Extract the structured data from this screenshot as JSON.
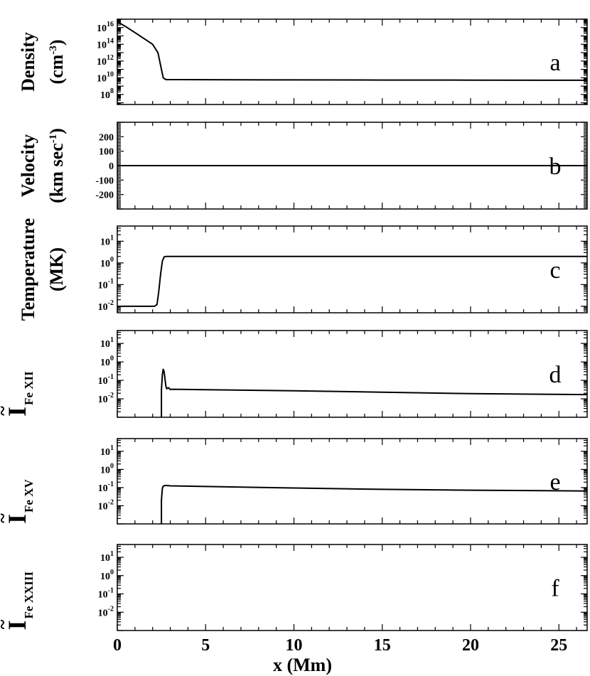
{
  "chart_data": {
    "type": "line",
    "xlabel": "x (Mm)",
    "xlim": [
      0,
      26.6
    ],
    "x_ticks": [
      0,
      5,
      10,
      15,
      20,
      25
    ],
    "panels": [
      {
        "id": "a",
        "letter": "a",
        "ylabel_line1": "Density",
        "ylabel_line2": "(cm",
        "ylabel_line2_sup": "-3",
        "ylabel_line2_end": ")",
        "scale": "log",
        "ylim_exp": [
          6.8,
          17.0
        ],
        "ticks": [
          {
            "value": 1e+16,
            "base": "10",
            "exp": "16"
          },
          {
            "value": 100000000000000.0,
            "base": "10",
            "exp": "14"
          },
          {
            "value": 1000000000000.0,
            "base": "10",
            "exp": "12"
          },
          {
            "value": 10000000000.0,
            "base": "10",
            "exp": "10"
          },
          {
            "value": 100000000.0,
            "base": "10",
            "exp": "8"
          }
        ],
        "series": [
          {
            "x": [
              0,
              0.5,
              1.0,
              1.5,
              2.0,
              2.3,
              2.5,
              2.6,
              2.75,
              3.0,
              5,
              10,
              15,
              20,
              26.6
            ],
            "y": [
              5e+16,
              1.2e+16,
              2500000000000000.0,
              500000000000000.0,
              100000000000000.0,
              10000000000000.0,
              100000000000.0,
              10000000000.0,
              6000000000.0,
              6000000000.0,
              5800000000.0,
              5500000000.0,
              5300000000.0,
              5200000000.0,
              5000000000.0
            ]
          }
        ]
      },
      {
        "id": "b",
        "letter": "b",
        "ylabel_line1": "Velocity",
        "ylabel_line2": "(km sec",
        "ylabel_line2_sup": "-1",
        "ylabel_line2_end": ")",
        "scale": "linear",
        "ylim": [
          -300,
          300
        ],
        "ticks": [
          {
            "value": 200,
            "label": "200"
          },
          {
            "value": 100,
            "label": "100"
          },
          {
            "value": 0,
            "label": "0"
          },
          {
            "value": -100,
            "label": "-100"
          },
          {
            "value": -200,
            "label": "-200"
          }
        ],
        "series": [
          {
            "x": [
              0,
              26.6
            ],
            "y": [
              0,
              0
            ]
          }
        ]
      },
      {
        "id": "c",
        "letter": "c",
        "ylabel_line1": "Temperature",
        "ylabel_line2": "(MK)",
        "scale": "log",
        "ylim_exp": [
          -2.3,
          1.7
        ],
        "ticks": [
          {
            "value": 10,
            "base": "10",
            "exp": "1"
          },
          {
            "value": 1,
            "base": "10",
            "exp": "0"
          },
          {
            "value": 0.1,
            "base": "10",
            "exp": "-1"
          },
          {
            "value": 0.01,
            "base": "10",
            "exp": "-2"
          }
        ],
        "series": [
          {
            "x": [
              0,
              2.1,
              2.25,
              2.35,
              2.45,
              2.55,
              2.65,
              2.75,
              26.6
            ],
            "y": [
              0.01,
              0.01,
              0.012,
              0.05,
              0.3,
              1.2,
              1.9,
              2.0,
              2.0
            ]
          }
        ]
      },
      {
        "id": "d",
        "letter": "d",
        "ylabel_big": "I",
        "ylabel_tilde": "~",
        "ylabel_sub": "Fe XII",
        "scale": "log",
        "ylim_exp": [
          -3.0,
          1.7
        ],
        "ticks": [
          {
            "value": 10,
            "base": "10",
            "exp": "1"
          },
          {
            "value": 1,
            "base": "10",
            "exp": "0"
          },
          {
            "value": 0.1,
            "base": "10",
            "exp": "-1"
          },
          {
            "value": 0.01,
            "base": "10",
            "exp": "-2"
          }
        ],
        "series": [
          {
            "x": [
              2.5,
              2.5,
              2.55,
              2.6,
              2.65,
              2.7,
              2.75,
              2.8,
              2.9,
              3.0,
              3.1,
              5,
              10,
              15,
              20,
              26.6
            ],
            "y": [
              0.001,
              0.03,
              0.2,
              0.4,
              0.3,
              0.12,
              0.05,
              0.035,
              0.04,
              0.032,
              0.033,
              0.031,
              0.027,
              0.023,
              0.019,
              0.017
            ]
          }
        ]
      },
      {
        "id": "e",
        "letter": "e",
        "ylabel_big": "I",
        "ylabel_tilde": "~",
        "ylabel_sub": "Fe XV",
        "scale": "log",
        "ylim_exp": [
          -3.0,
          1.7
        ],
        "ticks": [
          {
            "value": 10,
            "base": "10",
            "exp": "1"
          },
          {
            "value": 1,
            "base": "10",
            "exp": "0"
          },
          {
            "value": 0.1,
            "base": "10",
            "exp": "-1"
          },
          {
            "value": 0.01,
            "base": "10",
            "exp": "-2"
          }
        ],
        "series": [
          {
            "x": [
              2.5,
              2.5,
              2.55,
              2.6,
              2.7,
              2.8,
              3.0,
              5,
              10,
              15,
              20,
              26.6
            ],
            "y": [
              0.001,
              0.02,
              0.09,
              0.12,
              0.13,
              0.13,
              0.125,
              0.115,
              0.095,
              0.08,
              0.072,
              0.065
            ]
          }
        ]
      },
      {
        "id": "f",
        "letter": "f",
        "ylabel_big": "I",
        "ylabel_tilde": "~",
        "ylabel_sub": "Fe XXIII",
        "scale": "log",
        "ylim_exp": [
          -3.0,
          1.7
        ],
        "ticks": [
          {
            "value": 10,
            "base": "10",
            "exp": "1"
          },
          {
            "value": 1,
            "base": "10",
            "exp": "0"
          },
          {
            "value": 0.1,
            "base": "10",
            "exp": "-1"
          },
          {
            "value": 0.01,
            "base": "10",
            "exp": "-2"
          }
        ],
        "series": []
      }
    ]
  }
}
